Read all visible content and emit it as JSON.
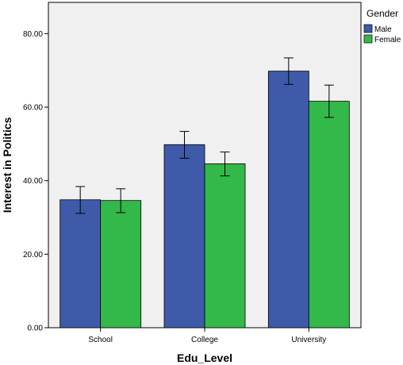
{
  "chart_data": {
    "type": "bar",
    "categories": [
      "School",
      "College",
      "University"
    ],
    "series": [
      {
        "name": "Male",
        "values": [
          34.8,
          49.8,
          69.8
        ],
        "error_low": [
          31.1,
          46.1,
          66.2
        ],
        "error_high": [
          38.4,
          53.4,
          73.4
        ]
      },
      {
        "name": "Female",
        "values": [
          34.6,
          44.6,
          61.6
        ],
        "error_low": [
          31.3,
          41.3,
          57.2
        ],
        "error_high": [
          37.8,
          47.8,
          66.0
        ]
      }
    ],
    "xlabel": "Edu_Level",
    "ylabel": "Interest in Politics",
    "yticks": [
      "0.00",
      "20.00",
      "40.00",
      "60.00",
      "80.00"
    ],
    "ylim": [
      0,
      88.5
    ],
    "grid": false,
    "legend": {
      "title": "Gender",
      "position": "top-right"
    },
    "colors": {
      "Male": "#3f5aa9",
      "Female": "#33b84a",
      "plot_background": "#f0f0f0"
    }
  }
}
